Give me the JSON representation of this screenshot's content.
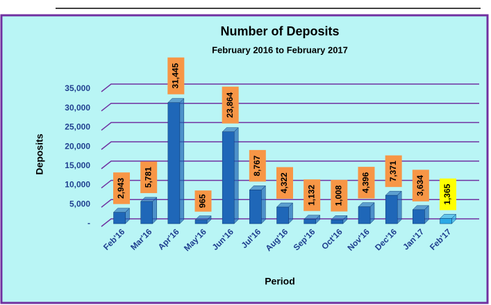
{
  "chart_data": {
    "type": "bar",
    "title": "Number of Deposits",
    "subtitle": "February 2016 to February 2017",
    "y_label": "Deposits",
    "x_label": "Period",
    "categories": [
      "Feb'16",
      "Mar'16",
      "Apr'16",
      "May'16",
      "Jun'16",
      "Jul'16",
      "Aug'16",
      "Sep'16",
      "Oct'16",
      "Nov'16",
      "Dec'16",
      "Jan'17",
      "Feb'17"
    ],
    "values": [
      2943,
      5781,
      31445,
      965,
      23864,
      8767,
      4322,
      1132,
      1008,
      4396,
      7371,
      3634,
      1365
    ],
    "value_labels": [
      "2,943",
      "5,781",
      "31,445",
      "965",
      "23,864",
      "8,767",
      "4,322",
      "1,132",
      "1,008",
      "4,396",
      "7,371",
      "3,634",
      "1,365"
    ],
    "colors": [
      "#1f67b8",
      "#1f67b8",
      "#1f67b8",
      "#1f67b8",
      "#1f67b8",
      "#1f67b8",
      "#1f67b8",
      "#1f67b8",
      "#1f67b8",
      "#1f67b8",
      "#1f67b8",
      "#1f67b8",
      "#2aa9e6"
    ],
    "label_fills": [
      "#f79646",
      "#f79646",
      "#f79646",
      "#f79646",
      "#f79646",
      "#f79646",
      "#f79646",
      "#f79646",
      "#f79646",
      "#f79646",
      "#f79646",
      "#f79646",
      "#ffff00"
    ],
    "ylim": [
      0,
      35000
    ],
    "yticks": [
      {
        "value": 0,
        "label": "-"
      },
      {
        "value": 5000,
        "label": "5,000"
      },
      {
        "value": 10000,
        "label": "10,000"
      },
      {
        "value": 15000,
        "label": "15,000"
      },
      {
        "value": 20000,
        "label": "20,000"
      },
      {
        "value": 25000,
        "label": "25,000"
      },
      {
        "value": 30000,
        "label": "30,000"
      },
      {
        "value": 35000,
        "label": "35,000"
      }
    ],
    "grid": true
  }
}
